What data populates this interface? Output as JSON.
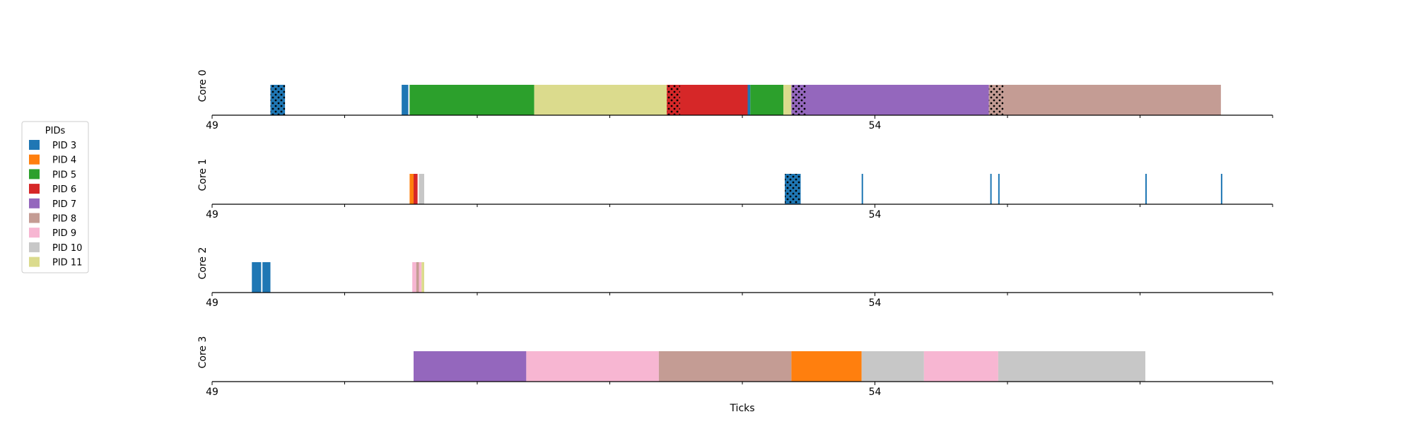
{
  "chart_data": {
    "type": "gantt",
    "xlabel": "Ticks",
    "xlim": [
      49,
      57
    ],
    "x_tick_labels": [
      {
        "value": 49,
        "label": "49"
      },
      {
        "value": 54,
        "label": "54"
      }
    ],
    "x_minor_ticks": [
      50,
      51,
      52,
      53,
      55,
      56,
      57
    ],
    "legend": {
      "title": "PIDs",
      "placement": "left",
      "entries": [
        {
          "label": "PID 3",
          "color": "#1f77b4"
        },
        {
          "label": "PID 4",
          "color": "#ff7f0e"
        },
        {
          "label": "PID 5",
          "color": "#2ca02c"
        },
        {
          "label": "PID 6",
          "color": "#d62728"
        },
        {
          "label": "PID 7",
          "color": "#9467bd"
        },
        {
          "label": "PID 8",
          "color": "#c49c94"
        },
        {
          "label": "PID 9",
          "color": "#f7b6d2"
        },
        {
          "label": "PID 10",
          "color": "#c7c7c7"
        },
        {
          "label": "PID 11",
          "color": "#dbdb8d"
        }
      ]
    },
    "cores": [
      {
        "label": "Core 0",
        "segments": [
          {
            "pid": 3,
            "start": 49.44,
            "end": 49.55,
            "hatch": true
          },
          {
            "pid": 3,
            "start": 50.43,
            "end": 50.48
          },
          {
            "pid": 5,
            "start": 50.49,
            "end": 51.43
          },
          {
            "pid": 11,
            "start": 51.43,
            "end": 52.43
          },
          {
            "pid": 6,
            "start": 52.43,
            "end": 52.53,
            "hatch": true
          },
          {
            "pid": 6,
            "start": 52.53,
            "end": 53.04
          },
          {
            "pid": 3,
            "start": 53.04,
            "end": 53.06
          },
          {
            "pid": 5,
            "start": 53.06,
            "end": 53.31
          },
          {
            "pid": 11,
            "start": 53.31,
            "end": 53.37
          },
          {
            "pid": 7,
            "start": 53.37,
            "end": 53.48,
            "hatch": true
          },
          {
            "pid": 7,
            "start": 53.48,
            "end": 54.86
          },
          {
            "pid": 8,
            "start": 54.86,
            "end": 54.97,
            "hatch": true
          },
          {
            "pid": 8,
            "start": 54.97,
            "end": 56.61
          }
        ]
      },
      {
        "label": "Core 1",
        "segments": [
          {
            "pid": 4,
            "start": 50.49,
            "end": 50.52
          },
          {
            "pid": 6,
            "start": 50.52,
            "end": 50.55
          },
          {
            "pid": 10,
            "start": 50.56,
            "end": 50.6
          },
          {
            "pid": 3,
            "start": 53.32,
            "end": 53.44,
            "hatch": true
          },
          {
            "pid": 3,
            "start": 53.9,
            "end": 53.91
          },
          {
            "pid": 3,
            "start": 54.87,
            "end": 54.88
          },
          {
            "pid": 3,
            "start": 54.93,
            "end": 54.94
          },
          {
            "pid": 3,
            "start": 56.04,
            "end": 56.05
          },
          {
            "pid": 3,
            "start": 56.61,
            "end": 56.62
          }
        ]
      },
      {
        "label": "Core 2",
        "segments": [
          {
            "pid": 3,
            "start": 49.3,
            "end": 49.37
          },
          {
            "pid": 3,
            "start": 49.38,
            "end": 49.44
          },
          {
            "pid": 9,
            "start": 50.51,
            "end": 50.54
          },
          {
            "pid": 8,
            "start": 50.54,
            "end": 50.56
          },
          {
            "pid": 9,
            "start": 50.56,
            "end": 50.58
          },
          {
            "pid": 11,
            "start": 50.58,
            "end": 50.6
          }
        ]
      },
      {
        "label": "Core 3",
        "segments": [
          {
            "pid": 7,
            "start": 50.52,
            "end": 51.37
          },
          {
            "pid": 9,
            "start": 51.37,
            "end": 52.37
          },
          {
            "pid": 8,
            "start": 52.37,
            "end": 53.37
          },
          {
            "pid": 4,
            "start": 53.37,
            "end": 53.9
          },
          {
            "pid": 10,
            "start": 53.9,
            "end": 54.37
          },
          {
            "pid": 9,
            "start": 54.37,
            "end": 54.93
          },
          {
            "pid": 10,
            "start": 54.93,
            "end": 56.04
          }
        ]
      }
    ]
  }
}
